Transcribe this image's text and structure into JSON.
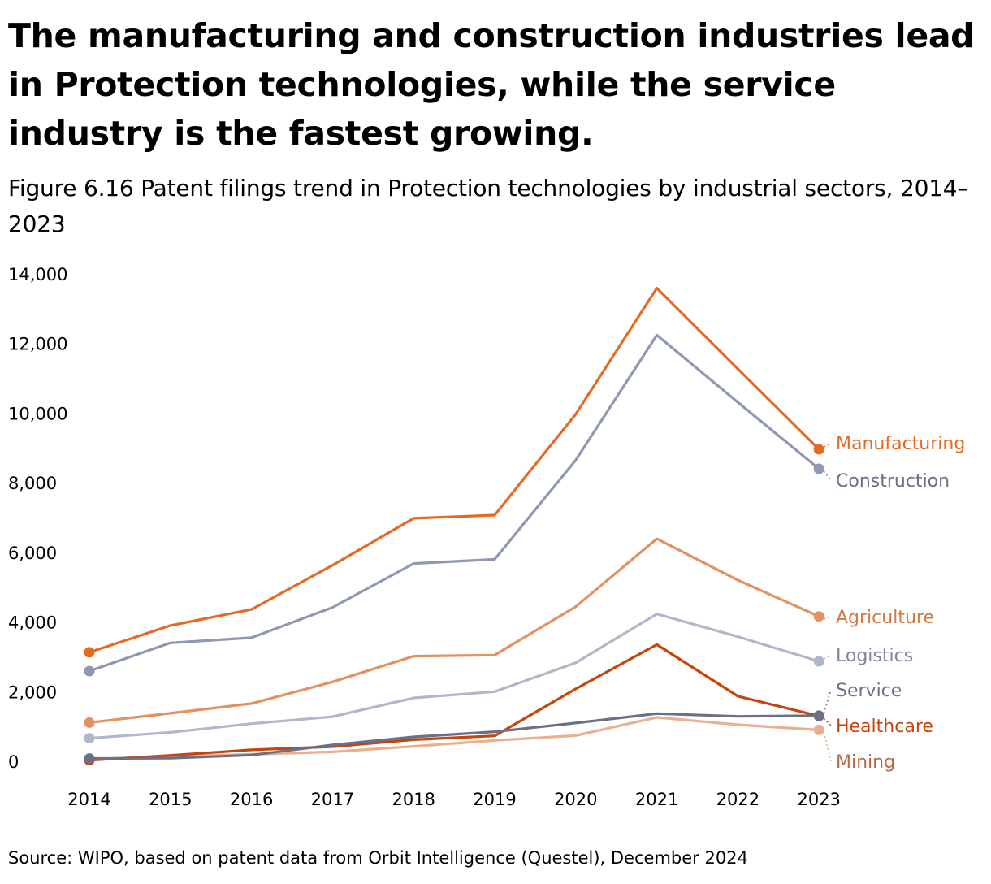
{
  "headline": "The manufacturing and construction industries lead in Protection technologies, while the service industry is the fastest growing.",
  "subtitle": "Figure 6.16 Patent filings trend in Protection technologies by industrial sectors, 2014–2023",
  "source": "Source: WIPO, based on patent data from Orbit Intelligence (Questel), December 2024",
  "chart_data": {
    "type": "line",
    "title": "Figure 6.16 Patent filings trend in Protection technologies by industrial sectors, 2014–2023",
    "xlabel": "",
    "ylabel": "",
    "ylim": [
      0,
      14000
    ],
    "x": [
      "2014",
      "2015",
      "2016",
      "2017",
      "2018",
      "2019",
      "2020",
      "2021",
      "2022",
      "2023"
    ],
    "y_ticks": [
      "0",
      "2,000",
      "4,000",
      "6,000",
      "8,000",
      "10,000",
      "12,000",
      "14,000"
    ],
    "y_tick_values": [
      0,
      2000,
      4000,
      6000,
      8000,
      10000,
      12000,
      14000
    ],
    "grid": false,
    "legend": "direct labels at right end of lines",
    "series": [
      {
        "name": "Mining",
        "color": "#e8b08f",
        "label_color": "#b86a45",
        "values": [
          60,
          140,
          200,
          270,
          430,
          600,
          740,
          1260,
          1050,
          900
        ]
      },
      {
        "name": "Healthcare",
        "color": "#c4460e",
        "label_color": "#c4460e",
        "values": [
          30,
          170,
          330,
          420,
          620,
          730,
          2080,
          3350,
          1870,
          1300
        ]
      },
      {
        "name": "Service",
        "color": "#6b7089",
        "label_color": "#6b7089",
        "values": [
          80,
          90,
          180,
          470,
          700,
          850,
          1100,
          1370,
          1290,
          1310
        ]
      },
      {
        "name": "Logistics",
        "color": "#b1b7cb",
        "label_color": "#7e849c",
        "values": [
          660,
          830,
          1080,
          1280,
          1820,
          2000,
          2830,
          4230,
          3580,
          2870
        ]
      },
      {
        "name": "Agriculture",
        "color": "#e39062",
        "label_color": "#d07a45",
        "values": [
          1110,
          1380,
          1660,
          2280,
          3020,
          3050,
          4440,
          6390,
          5200,
          4160
        ]
      },
      {
        "name": "Construction",
        "color": "#8f98b2",
        "label_color": "#6b7089",
        "values": [
          2590,
          3400,
          3550,
          4420,
          5680,
          5800,
          8650,
          12240,
          10310,
          8400
        ]
      },
      {
        "name": "Manufacturing",
        "color": "#e56a24",
        "label_color": "#e56a24",
        "values": [
          3130,
          3900,
          4360,
          5630,
          6980,
          7070,
          9970,
          13590,
          11270,
          8960
        ]
      }
    ]
  }
}
